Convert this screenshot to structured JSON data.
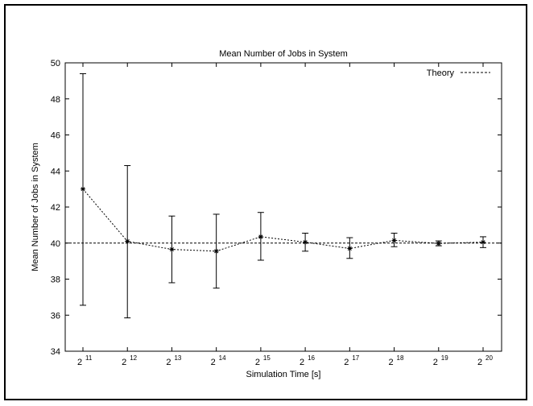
{
  "chart_data": {
    "type": "line",
    "title": "Mean Number of Jobs in System",
    "xlabel": "Simulation Time [s]",
    "ylabel": "Mean Number of Jobs in System",
    "ylim": [
      34,
      50
    ],
    "yticks": [
      34,
      36,
      38,
      40,
      42,
      44,
      46,
      48,
      50
    ],
    "x_exponents": [
      11,
      12,
      13,
      14,
      15,
      16,
      17,
      18,
      19,
      20
    ],
    "x_tick_base": "2",
    "x_tick_sups": [
      "11",
      "12",
      "13",
      "14",
      "15",
      "16",
      "17",
      "18",
      "19",
      "20"
    ],
    "series": [
      {
        "values": [
          43.0,
          40.1,
          39.65,
          39.55,
          40.35,
          40.05,
          39.7,
          40.15,
          39.98,
          40.05
        ],
        "err_low": [
          36.55,
          35.85,
          37.8,
          37.5,
          39.05,
          39.55,
          39.15,
          39.8,
          39.85,
          39.75
        ],
        "err_high": [
          49.4,
          44.3,
          41.5,
          41.6,
          41.7,
          40.55,
          40.3,
          40.55,
          40.12,
          40.35
        ]
      },
      {
        "name": "Theory",
        "constant": 40
      }
    ],
    "legend": {
      "position": "top-right",
      "label": "Theory"
    },
    "grid": false
  }
}
